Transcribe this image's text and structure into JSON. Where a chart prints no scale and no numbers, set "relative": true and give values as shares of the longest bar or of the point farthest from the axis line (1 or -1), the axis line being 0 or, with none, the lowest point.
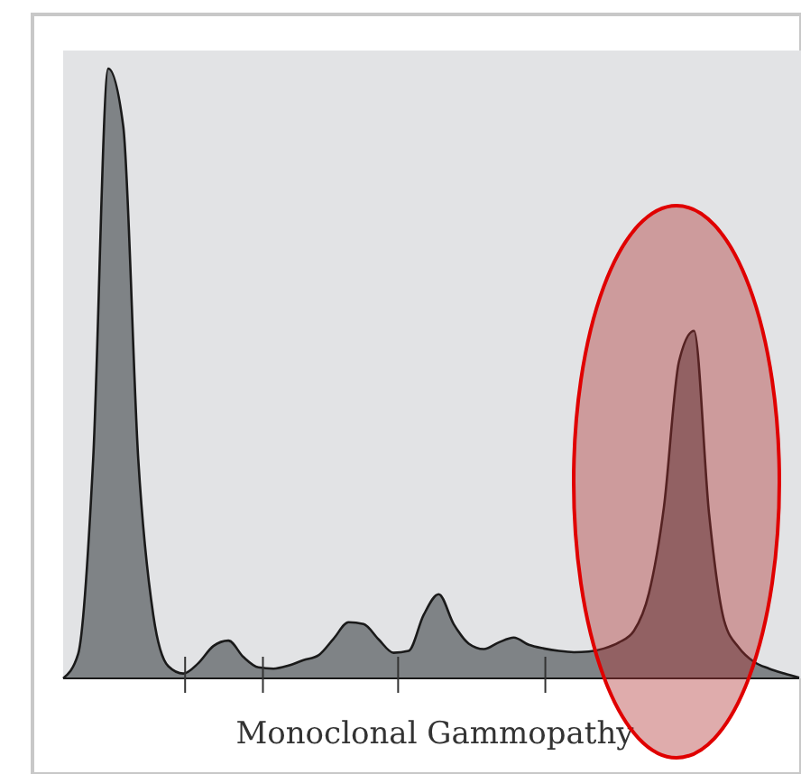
{
  "chart_data": {
    "type": "area",
    "relative": true,
    "xlabel": "Monoclonal Gammopathy",
    "categories": [
      null,
      null,
      null,
      null,
      null,
      null,
      null,
      null,
      null,
      null,
      null,
      null,
      null,
      null,
      null,
      null,
      null,
      null,
      null,
      null,
      null,
      null,
      null,
      null,
      null,
      null,
      null,
      null,
      null,
      null,
      null,
      null,
      null,
      null,
      null,
      null,
      null,
      null,
      null,
      null,
      null,
      null,
      null,
      null,
      null,
      null,
      null,
      null,
      null,
      null
    ],
    "series": [
      {
        "color": "#7f8386",
        "values": [
          0,
          0.04,
          0.36,
          1,
          0.906,
          0.36,
          0.104,
          0.02,
          0.008,
          0.025,
          0.053,
          0.062,
          0.035,
          0.018,
          0.016,
          0.021,
          0.03,
          0.038,
          0.065,
          0.092,
          0.089,
          0.064,
          0.042,
          0.045,
          0.104,
          0.138,
          0.089,
          0.057,
          0.048,
          0.059,
          0.067,
          0.055,
          0.049,
          0.045,
          0.043,
          0.044,
          0.049,
          0.059,
          0.078,
          0.14,
          0.282,
          0.52,
          0.57,
          0.27,
          0.095,
          0.05,
          0.027,
          0.016,
          0.008,
          0.001
        ]
      }
    ]
  }
}
